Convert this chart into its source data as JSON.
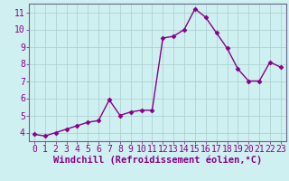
{
  "x": [
    0,
    1,
    2,
    3,
    4,
    5,
    6,
    7,
    8,
    9,
    10,
    11,
    12,
    13,
    14,
    15,
    16,
    17,
    18,
    19,
    20,
    21,
    22,
    23
  ],
  "y": [
    3.9,
    3.8,
    4.0,
    4.2,
    4.4,
    4.6,
    4.7,
    5.9,
    5.0,
    5.2,
    5.3,
    5.3,
    9.5,
    9.6,
    10.0,
    11.2,
    10.7,
    9.8,
    8.9,
    7.7,
    7.0,
    7.0,
    8.1,
    7.8
  ],
  "line_color": "#880088",
  "marker": "D",
  "marker_size": 2.5,
  "bg_color": "#cff0f0",
  "grid_color": "#aacccc",
  "xlabel": "Windchill (Refroidissement éolien,°C)",
  "xlim": [
    -0.5,
    23.5
  ],
  "ylim": [
    3.5,
    11.5
  ],
  "yticks": [
    4,
    5,
    6,
    7,
    8,
    9,
    10,
    11
  ],
  "xticks": [
    0,
    1,
    2,
    3,
    4,
    5,
    6,
    7,
    8,
    9,
    10,
    11,
    12,
    13,
    14,
    15,
    16,
    17,
    18,
    19,
    20,
    21,
    22,
    23
  ],
  "xlabel_fontsize": 7.5,
  "tick_fontsize": 7,
  "line_width": 1.0,
  "spine_color": "#666688"
}
